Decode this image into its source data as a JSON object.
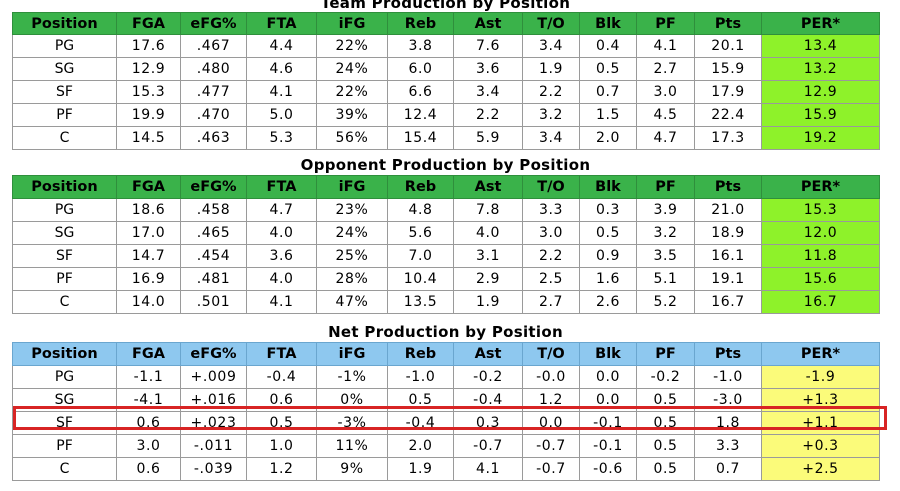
{
  "columns": [
    "Position",
    "FGA",
    "eFG%",
    "FTA",
    "iFG",
    "Reb",
    "Ast",
    "T/O",
    "Blk",
    "PF",
    "Pts",
    "PER*"
  ],
  "tables": [
    {
      "title": "Team Production by Position",
      "rows": [
        [
          "PG",
          "17.6",
          ".467",
          "4.4",
          "22%",
          "3.8",
          "7.6",
          "3.4",
          "0.4",
          "4.1",
          "20.1",
          "13.4"
        ],
        [
          "SG",
          "12.9",
          ".480",
          "4.6",
          "24%",
          "6.0",
          "3.6",
          "1.9",
          "0.5",
          "2.7",
          "15.9",
          "13.2"
        ],
        [
          "SF",
          "15.3",
          ".477",
          "4.1",
          "22%",
          "6.6",
          "3.4",
          "2.2",
          "0.7",
          "3.0",
          "17.9",
          "12.9"
        ],
        [
          "PF",
          "19.9",
          ".470",
          "5.0",
          "39%",
          "12.4",
          "2.2",
          "3.2",
          "1.5",
          "4.5",
          "22.4",
          "15.9"
        ],
        [
          "C",
          "14.5",
          ".463",
          "5.3",
          "56%",
          "15.4",
          "5.9",
          "3.4",
          "2.0",
          "4.7",
          "17.3",
          "19.2"
        ]
      ]
    },
    {
      "title": "Opponent Production by Position",
      "rows": [
        [
          "PG",
          "18.6",
          ".458",
          "4.7",
          "23%",
          "4.8",
          "7.8",
          "3.3",
          "0.3",
          "3.9",
          "21.0",
          "15.3"
        ],
        [
          "SG",
          "17.0",
          ".465",
          "4.0",
          "24%",
          "5.6",
          "4.0",
          "3.0",
          "0.5",
          "3.2",
          "18.9",
          "12.0"
        ],
        [
          "SF",
          "14.7",
          ".454",
          "3.6",
          "25%",
          "7.0",
          "3.1",
          "2.2",
          "0.9",
          "3.5",
          "16.1",
          "11.8"
        ],
        [
          "PF",
          "16.9",
          ".481",
          "4.0",
          "28%",
          "10.4",
          "2.9",
          "2.5",
          "1.6",
          "5.1",
          "19.1",
          "15.6"
        ],
        [
          "C",
          "14.0",
          ".501",
          "4.1",
          "47%",
          "13.5",
          "1.9",
          "2.7",
          "2.6",
          "5.2",
          "16.7",
          "16.7"
        ]
      ]
    },
    {
      "title": "Net Production by Position",
      "rows": [
        [
          "PG",
          "-1.1",
          "+.009",
          "-0.4",
          "-1%",
          "-1.0",
          "-0.2",
          "-0.0",
          "0.0",
          "-0.2",
          "-1.0",
          "-1.9"
        ],
        [
          "SG",
          "-4.1",
          "+.016",
          "0.6",
          "0%",
          "0.5",
          "-0.4",
          "1.2",
          "0.0",
          "0.5",
          "-3.0",
          "+1.3"
        ],
        [
          "SF",
          "0.6",
          "+.023",
          "0.5",
          "-3%",
          "-0.4",
          "0.3",
          "0.0",
          "-0.1",
          "0.5",
          "1.8",
          "+1.1"
        ],
        [
          "PF",
          "3.0",
          "-.011",
          "1.0",
          "11%",
          "2.0",
          "-0.7",
          "-0.7",
          "-0.1",
          "0.5",
          "3.3",
          "+0.3"
        ],
        [
          "C",
          "0.6",
          "-.039",
          "1.2",
          "9%",
          "1.9",
          "4.1",
          "-0.7",
          "-0.6",
          "0.5",
          "0.7",
          "+2.5"
        ]
      ]
    }
  ],
  "highlighted_row": {
    "table": "Net Production by Position",
    "position": "SF"
  },
  "colors": {
    "green_header": "#3ab24a",
    "per_green": "#8ef22a",
    "blue_header": "#8ec8ef",
    "per_yellow": "#fbfb7a",
    "highlight_border": "#d82424"
  }
}
